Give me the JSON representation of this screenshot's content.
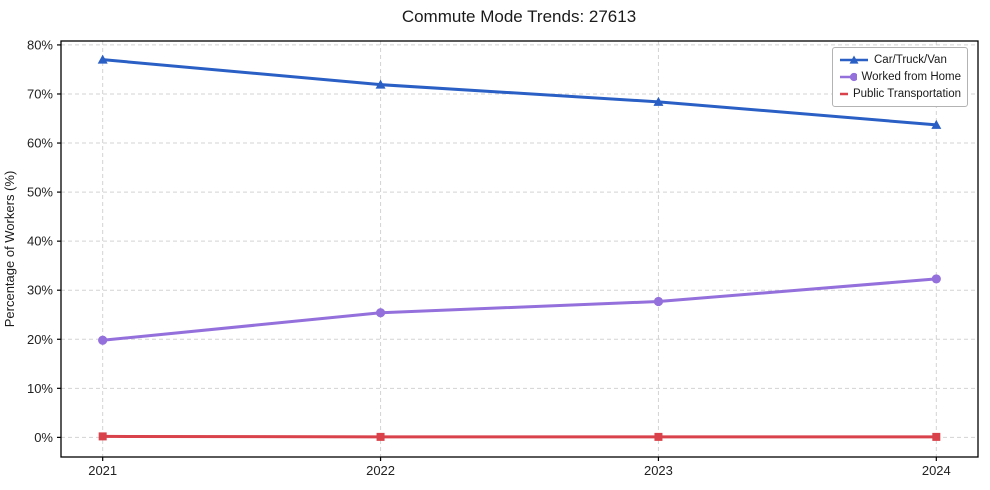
{
  "chart_data": {
    "type": "line",
    "title": "Commute Mode Trends: 27613",
    "xlabel": "",
    "ylabel": "Percentage of Workers (%)",
    "x": [
      2021,
      2022,
      2023,
      2024
    ],
    "series": [
      {
        "name": "Car/Truck/Van",
        "color": "#2a5fc5",
        "marker": "triangle",
        "values": [
          77.0,
          71.9,
          68.4,
          63.7
        ]
      },
      {
        "name": "Worked from Home",
        "color": "#9370db",
        "marker": "circle",
        "values": [
          19.8,
          25.4,
          27.7,
          32.3
        ]
      },
      {
        "name": "Public Transportation",
        "color": "#d9424a",
        "marker": "square",
        "values": [
          0.2,
          0.1,
          0.1,
          0.1
        ]
      }
    ],
    "xticks": [
      2021,
      2022,
      2023,
      2024
    ],
    "xtick_labels": [
      "2021",
      "2022",
      "2023",
      "2024"
    ],
    "yticks": [
      0,
      10,
      20,
      30,
      40,
      50,
      60,
      70,
      80
    ],
    "ytick_labels": [
      "0%",
      "10%",
      "20%",
      "30%",
      "40%",
      "50%",
      "60%",
      "70%",
      "80%"
    ],
    "xlim": [
      2020.85,
      2024.15
    ],
    "ylim": [
      -4,
      80.8
    ],
    "grid": true,
    "legend_position": "top-right",
    "background_color": "#ffffff",
    "spine_color": "#000000",
    "grid_color": "#d3d3d3"
  }
}
